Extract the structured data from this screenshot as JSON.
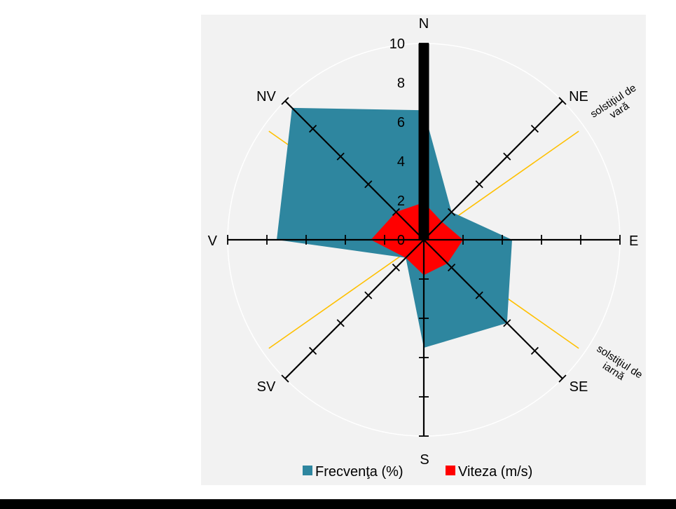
{
  "chart_data": {
    "type": "radar",
    "directions": [
      "N",
      "NE",
      "E",
      "SE",
      "S",
      "SV",
      "V",
      "NV"
    ],
    "r_ticks": [
      "0",
      "2",
      "4",
      "6",
      "8",
      "10"
    ],
    "rlim": [
      0,
      10
    ],
    "series": [
      {
        "name": "Frecvenţa (%)",
        "color": "#2e869f",
        "values": [
          6.6,
          2.0,
          4.5,
          6.0,
          5.5,
          1.3,
          7.5,
          9.5
        ]
      },
      {
        "name": "Viteza (m/s)",
        "color": "#ff0000",
        "values": [
          1.9,
          1.3,
          2.0,
          1.7,
          1.8,
          1.3,
          2.7,
          2.0
        ]
      }
    ],
    "highlight_bar": {
      "direction": "N",
      "value": 10,
      "color": "#000000"
    },
    "annotations": [
      {
        "text": [
          "solstiţiul de",
          "vară"
        ],
        "color": "#ffc000"
      },
      {
        "text": [
          "solstiţiul de",
          "iarnă"
        ],
        "color": "#ffc000"
      }
    ],
    "legend_position": "bottom"
  },
  "colors": {
    "panel_background": "#f2f2f2",
    "axis": "#000000",
    "solstice_line": "#ffc000"
  }
}
